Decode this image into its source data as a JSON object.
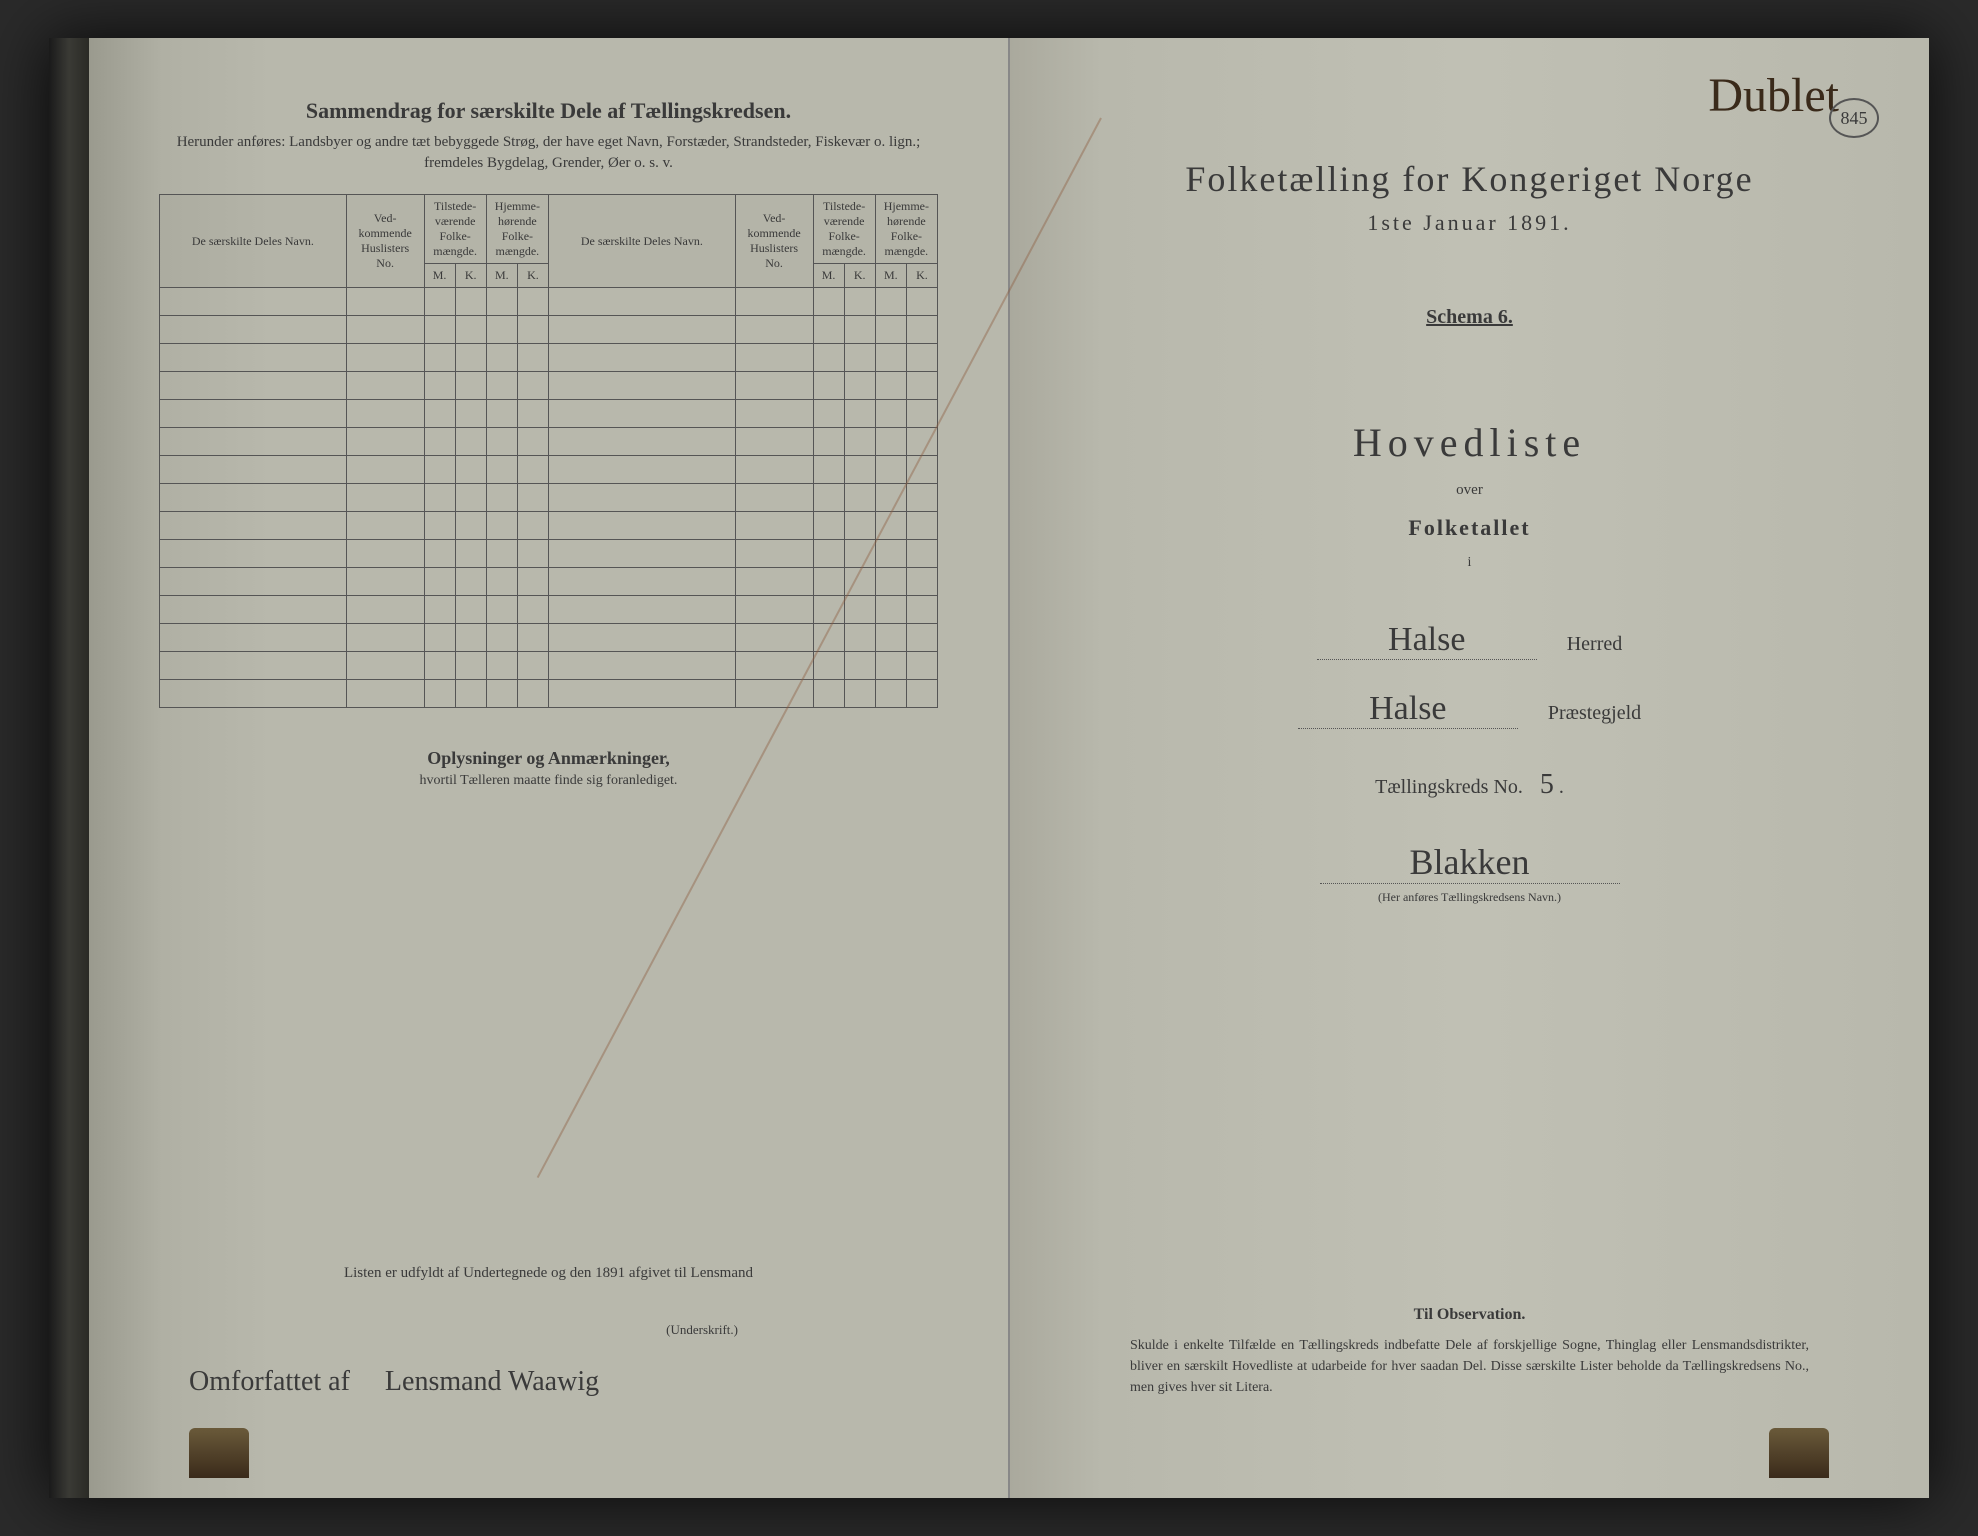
{
  "left": {
    "title": "Sammendrag for særskilte Dele af Tællingskredsen.",
    "subtitle": "Herunder anføres: Landsbyer og andre tæt bebyggede Strøg, der have eget Navn, Forstæder, Strandsteder, Fiskevær o. lign.; fremdeles Bygdelag, Grender, Øer o. s. v.",
    "headers": {
      "name": "De særskilte Deles Navn.",
      "vedkommende": "Ved-kommende Huslisters No.",
      "tilstede": "Tilstede-værende Folke-mængde.",
      "hjemme": "Hjemme-hørende Folke-mængde.",
      "m": "M.",
      "k": "K."
    },
    "oplysninger_title": "Oplysninger og Anmærkninger,",
    "oplysninger_sub": "hvortil Tælleren maatte finde sig foranlediget.",
    "listen": "Listen er udfyldt af Undertegnede og den                1891 afgivet til Lensmand",
    "underskrift": "(Underskrift.)",
    "hw_omforfattet": "Omforfattet af",
    "hw_lensmand": "Lensmand Waawig"
  },
  "right": {
    "hw_dublet": "Dublet",
    "stamp": "845",
    "census_title": "Folketælling for Kongeriget Norge",
    "census_date": "1ste Januar 1891.",
    "schema": "Schema 6.",
    "hovedliste": "Hovedliste",
    "over": "over",
    "folketallet": "Folketallet",
    "i": "i",
    "herred_hw": "Halse",
    "herred_label": "Herred",
    "praeste_hw": "Halse",
    "praeste_label": "Præstegjeld",
    "kreds_label": "Tællingskreds No.",
    "kreds_no": "5",
    "kreds_name_hw": "Blakken",
    "kreds_sub": "(Her anføres Tællingskredsens Navn.)",
    "obs_title": "Til Observation.",
    "obs_body": "Skulde i enkelte Tilfælde en Tællingskreds indbefatte Dele af forskjellige Sogne, Thinglag eller Lensmandsdistrikter, bliver en særskilt Hovedliste at udarbeide for hver saadan Del. Disse særskilte Lister beholde da Tællingskredsens No., men gives hver sit Litera."
  },
  "colors": {
    "paper": "#b8b8ac",
    "ink": "#3a3a3a",
    "background": "#2a2a2a"
  }
}
